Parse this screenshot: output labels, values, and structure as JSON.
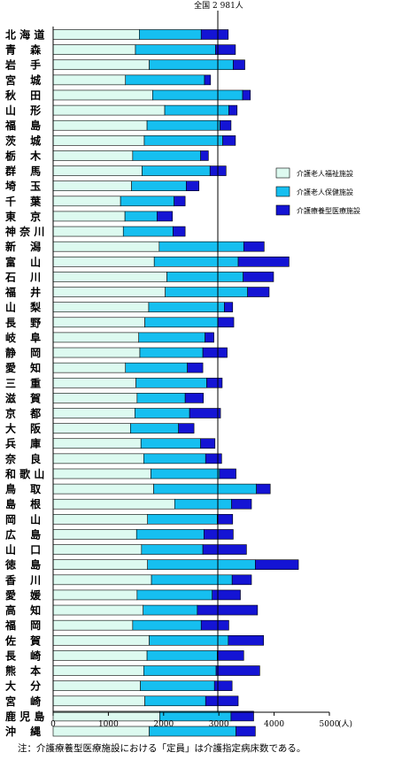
{
  "chart_data": {
    "type": "bar",
    "stacked": true,
    "orientation": "horizontal",
    "reference_label": "全国 2 981人",
    "reference_value": 2981,
    "xlim": [
      0,
      5000
    ],
    "xticks": [
      0,
      1000,
      2000,
      3000,
      4000,
      5000
    ],
    "x_unit_label": "(人)",
    "legend_position": "right",
    "categories": [
      "北海道",
      "青森",
      "岩手",
      "宮城",
      "秋田",
      "山形",
      "福島",
      "茨城",
      "栃木",
      "群馬",
      "埼玉",
      "千葉",
      "東京",
      "神奈川",
      "新潟",
      "富山",
      "石川",
      "福井",
      "山梨",
      "長野",
      "岐阜",
      "静岡",
      "愛知",
      "三重",
      "滋賀",
      "京都",
      "大阪",
      "兵庫",
      "奈良",
      "和歌山",
      "鳥取",
      "島根",
      "岡山",
      "広島",
      "山口",
      "徳島",
      "香川",
      "愛媛",
      "高知",
      "福岡",
      "佐賀",
      "長崎",
      "熊本",
      "大分",
      "宮崎",
      "鹿児島",
      "沖縄"
    ],
    "category_display": [
      "北 海 道",
      "青　 森",
      "岩　 手",
      "宮　 城",
      "秋　 田",
      "山　 形",
      "福　 島",
      "茨　 城",
      "栃　 木",
      "群　 馬",
      "埼　 玉",
      "千　 葉",
      "東　 京",
      "神 奈 川",
      "新　 潟",
      "富　 山",
      "石　 川",
      "福　 井",
      "山　 梨",
      "長　 野",
      "岐　 阜",
      "静　 岡",
      "愛　 知",
      "三　 重",
      "滋　 賀",
      "京　 都",
      "大　 阪",
      "兵　 庫",
      "奈　 良",
      "和 歌 山",
      "鳥　 取",
      "島　 根",
      "岡　 山",
      "広　 島",
      "山　 口",
      "徳　 島",
      "香　 川",
      "愛　 媛",
      "高　 知",
      "福　 岡",
      "佐　 賀",
      "長　 崎",
      "熊　 本",
      "大　 分",
      "宮　 崎",
      "鹿 児 島",
      "沖　 縄"
    ],
    "series": [
      {
        "name": "介護老人福祉施設",
        "color": "#ddfaf0",
        "values": [
          1560,
          1490,
          1740,
          1310,
          1800,
          2020,
          1700,
          1650,
          1440,
          1610,
          1420,
          1220,
          1300,
          1270,
          1920,
          1830,
          2060,
          2030,
          1730,
          1660,
          1550,
          1570,
          1310,
          1500,
          1520,
          1480,
          1400,
          1590,
          1640,
          1770,
          1820,
          2200,
          1710,
          1510,
          1600,
          1710,
          1780,
          1520,
          1630,
          1440,
          1740,
          1700,
          1640,
          1580,
          1660,
          1930,
          1740
        ]
      },
      {
        "name": "介護老人保健施設",
        "color": "#16bff0",
        "values": [
          1120,
          1450,
          1520,
          1430,
          1630,
          1160,
          1320,
          1420,
          1230,
          1230,
          990,
          970,
          580,
          900,
          1530,
          1520,
          1380,
          1490,
          1370,
          1320,
          1200,
          1140,
          1120,
          1280,
          870,
          990,
          870,
          1080,
          1120,
          1240,
          1860,
          1030,
          1260,
          1220,
          1110,
          1950,
          1460,
          1360,
          980,
          1240,
          1430,
          1270,
          1310,
          1340,
          1100,
          1290,
          1570
        ]
      },
      {
        "name": "介護療養型医療施設",
        "color": "#1414d4",
        "values": [
          490,
          360,
          210,
          110,
          140,
          150,
          200,
          230,
          140,
          290,
          230,
          200,
          280,
          220,
          370,
          920,
          550,
          390,
          150,
          290,
          160,
          440,
          280,
          280,
          330,
          560,
          280,
          260,
          290,
          300,
          250,
          360,
          280,
          530,
          790,
          780,
          350,
          510,
          1090,
          500,
          640,
          480,
          790,
          320,
          590,
          410,
          350
        ]
      }
    ]
  },
  "note": "注：介護療養型医療施設における「定員」は介護指定病床数である。"
}
